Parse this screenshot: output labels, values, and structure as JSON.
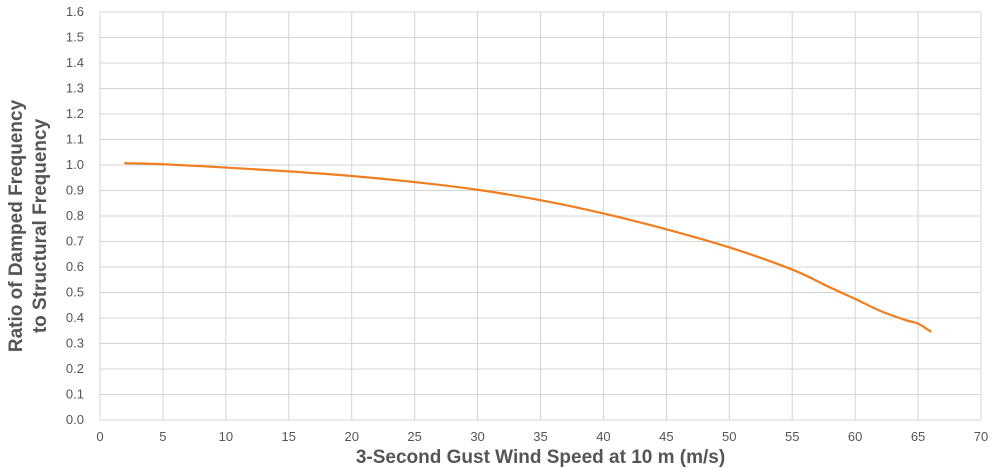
{
  "chart_data": {
    "type": "line",
    "xlabel": "3-Second Gust Wind Speed at 10 m (m/s)",
    "ylabel_lines": [
      "Ratio of Damped Frequency",
      "to Structural Frequency"
    ],
    "xlim": [
      0,
      70
    ],
    "ylim": [
      0.0,
      1.6
    ],
    "xticks": [
      "0",
      "5",
      "10",
      "15",
      "20",
      "25",
      "30",
      "35",
      "40",
      "45",
      "50",
      "55",
      "60",
      "65",
      "70"
    ],
    "yticks": [
      "0.0",
      "0.1",
      "0.2",
      "0.3",
      "0.4",
      "0.5",
      "0.6",
      "0.7",
      "0.8",
      "0.9",
      "1.0",
      "1.1",
      "1.2",
      "1.3",
      "1.4",
      "1.5",
      "1.6"
    ],
    "grid": true,
    "series": [
      {
        "color": "#f07d1f",
        "x": [
          2,
          5,
          10,
          15,
          20,
          25,
          30,
          35,
          40,
          45,
          50,
          55,
          58,
          60,
          62,
          64,
          65,
          66
        ],
        "y": [
          1.007,
          1.003,
          0.99,
          0.975,
          0.957,
          0.933,
          0.903,
          0.862,
          0.81,
          0.748,
          0.677,
          0.59,
          0.52,
          0.475,
          0.428,
          0.392,
          0.378,
          0.347
        ]
      }
    ]
  }
}
